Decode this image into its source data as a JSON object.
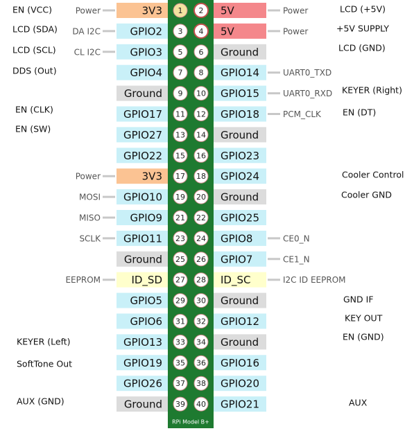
{
  "board_label": "RPi Model B+",
  "rows": [
    {
      "left": {
        "pin": 1,
        "name": "3V3",
        "color": "#fbc393",
        "function": "Power"
      },
      "right": {
        "pin": 2,
        "name": "5V",
        "color": "#f4878b",
        "function": "Power"
      }
    },
    {
      "left": {
        "pin": 3,
        "name": "GPIO2",
        "color": "#c9f0f8",
        "function": "DA I2C"
      },
      "right": {
        "pin": 4,
        "name": "5V",
        "color": "#f4878b",
        "function": "Power"
      }
    },
    {
      "left": {
        "pin": 5,
        "name": "GPIO3",
        "color": "#c9f0f8",
        "function": "CL I2C"
      },
      "right": {
        "pin": 6,
        "name": "Ground",
        "color": "#dcdcdc"
      }
    },
    {
      "left": {
        "pin": 7,
        "name": "GPIO4",
        "color": "#c9f0f8"
      },
      "right": {
        "pin": 8,
        "name": "GPIO14",
        "color": "#c9f0f8",
        "function": "UART0_TXD"
      }
    },
    {
      "left": {
        "pin": 9,
        "name": "Ground",
        "color": "#dcdcdc"
      },
      "right": {
        "pin": 10,
        "name": "GPIO15",
        "color": "#c9f0f8",
        "function": "UART0_RXD"
      }
    },
    {
      "left": {
        "pin": 11,
        "name": "GPIO17",
        "color": "#c9f0f8"
      },
      "right": {
        "pin": 12,
        "name": "GPIO18",
        "color": "#c9f0f8",
        "function": "PCM_CLK"
      }
    },
    {
      "left": {
        "pin": 13,
        "name": "GPIO27",
        "color": "#c9f0f8"
      },
      "right": {
        "pin": 14,
        "name": "Ground",
        "color": "#dcdcdc"
      }
    },
    {
      "left": {
        "pin": 15,
        "name": "GPIO22",
        "color": "#c9f0f8"
      },
      "right": {
        "pin": 16,
        "name": "GPIO23",
        "color": "#c9f0f8"
      }
    },
    {
      "left": {
        "pin": 17,
        "name": "3V3",
        "color": "#fbc393",
        "function": "Power"
      },
      "right": {
        "pin": 18,
        "name": "GPIO24",
        "color": "#c9f0f8"
      }
    },
    {
      "left": {
        "pin": 19,
        "name": "GPIO10",
        "color": "#c9f0f8",
        "function": "MOSI"
      },
      "right": {
        "pin": 20,
        "name": "Ground",
        "color": "#dcdcdc"
      }
    },
    {
      "left": {
        "pin": 21,
        "name": "GPIO9",
        "color": "#c9f0f8",
        "function": "MISO"
      },
      "right": {
        "pin": 22,
        "name": "GPIO25",
        "color": "#c9f0f8"
      }
    },
    {
      "left": {
        "pin": 23,
        "name": "GPIO11",
        "color": "#c9f0f8",
        "function": "SCLK"
      },
      "right": {
        "pin": 24,
        "name": "GPIO8",
        "color": "#c9f0f8",
        "function": "CE0_N"
      }
    },
    {
      "left": {
        "pin": 25,
        "name": "Ground",
        "color": "#dcdcdc"
      },
      "right": {
        "pin": 26,
        "name": "GPIO7",
        "color": "#c9f0f8",
        "function": "CE1_N"
      }
    },
    {
      "left": {
        "pin": 27,
        "name": "ID_SD",
        "color": "#ffffcc",
        "function": "EEPROM"
      },
      "right": {
        "pin": 28,
        "name": "ID_SC",
        "color": "#ffffcc",
        "function": "I2C ID EEPROM"
      }
    },
    {
      "left": {
        "pin": 29,
        "name": "GPIO5",
        "color": "#c9f0f8"
      },
      "right": {
        "pin": 30,
        "name": "Ground",
        "color": "#dcdcdc"
      }
    },
    {
      "left": {
        "pin": 31,
        "name": "GPIO6",
        "color": "#c9f0f8"
      },
      "right": {
        "pin": 32,
        "name": "GPIO12",
        "color": "#c9f0f8"
      }
    },
    {
      "left": {
        "pin": 33,
        "name": "GPIO13",
        "color": "#c9f0f8"
      },
      "right": {
        "pin": 34,
        "name": "Ground",
        "color": "#dcdcdc"
      }
    },
    {
      "left": {
        "pin": 35,
        "name": "GPIO19",
        "color": "#c9f0f8"
      },
      "right": {
        "pin": 36,
        "name": "GPIO16",
        "color": "#c9f0f8"
      }
    },
    {
      "left": {
        "pin": 37,
        "name": "GPIO26",
        "color": "#c9f0f8"
      },
      "right": {
        "pin": 38,
        "name": "GPIO20",
        "color": "#c9f0f8"
      }
    },
    {
      "left": {
        "pin": 39,
        "name": "Ground",
        "color": "#dcdcdc"
      },
      "right": {
        "pin": 40,
        "name": "GPIO21",
        "color": "#c9f0f8"
      }
    }
  ],
  "notes_left": [
    "EN (VCC)",
    "LCD (SDA)",
    "LCD (SCL)",
    "DDS (Out)",
    "EN (CLK)",
    "EN (SW)",
    "KEYER (Left)",
    "SoftTone Out",
    "AUX (GND)"
  ],
  "notes_right": [
    "LCD (+5V)",
    "+5V SUPPLY",
    "LCD (GND)",
    "KEYER (Right)",
    "EN (DT)",
    "Cooler Control",
    "Cooler GND",
    "GND IF",
    "KEY OUT",
    "EN (GND)",
    "AUX"
  ]
}
